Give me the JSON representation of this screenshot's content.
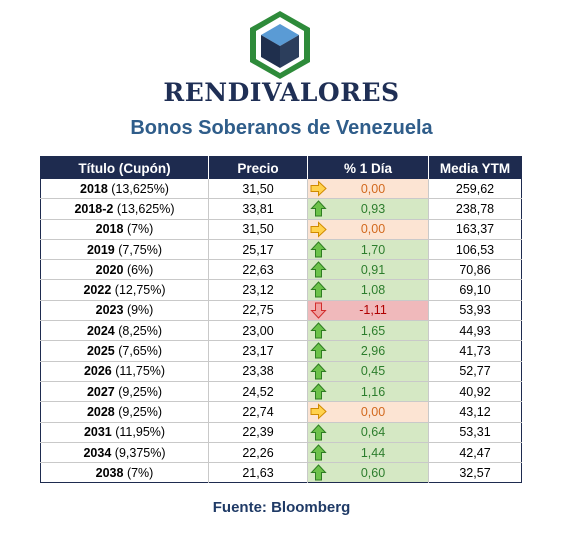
{
  "header": {
    "brand": "RENDIVALORES",
    "subtitle": "Bonos Soberanos de Venezuela"
  },
  "table": {
    "columns": [
      "Título (Cupón)",
      "Precio",
      "% 1 Día",
      "Media YTM"
    ],
    "rows": [
      {
        "year": "2018",
        "coupon": "(13,625%)",
        "price": "31,50",
        "change": "0,00",
        "trend": "flat",
        "ytm": "259,62"
      },
      {
        "year": "2018-2",
        "coupon": "(13,625%)",
        "price": "33,81",
        "change": "0,93",
        "trend": "up",
        "ytm": "238,78"
      },
      {
        "year": "2018",
        "coupon": "(7%)",
        "price": "31,50",
        "change": "0,00",
        "trend": "flat",
        "ytm": "163,37"
      },
      {
        "year": "2019",
        "coupon": "(7,75%)",
        "price": "25,17",
        "change": "1,70",
        "trend": "up",
        "ytm": "106,53"
      },
      {
        "year": "2020",
        "coupon": "(6%)",
        "price": "22,63",
        "change": "0,91",
        "trend": "up",
        "ytm": "70,86"
      },
      {
        "year": "2022",
        "coupon": "(12,75%)",
        "price": "23,12",
        "change": "1,08",
        "trend": "up",
        "ytm": "69,10"
      },
      {
        "year": "2023",
        "coupon": "(9%)",
        "price": "22,75",
        "change": "-1,11",
        "trend": "down",
        "ytm": "53,93"
      },
      {
        "year": "2024",
        "coupon": "(8,25%)",
        "price": "23,00",
        "change": "1,65",
        "trend": "up",
        "ytm": "44,93"
      },
      {
        "year": "2025",
        "coupon": "(7,65%)",
        "price": "23,17",
        "change": "2,96",
        "trend": "up",
        "ytm": "41,73"
      },
      {
        "year": "2026",
        "coupon": "(11,75%)",
        "price": "23,38",
        "change": "0,45",
        "trend": "up",
        "ytm": "52,77"
      },
      {
        "year": "2027",
        "coupon": "(9,25%)",
        "price": "24,52",
        "change": "1,16",
        "trend": "up",
        "ytm": "40,92"
      },
      {
        "year": "2028",
        "coupon": "(9,25%)",
        "price": "22,74",
        "change": "0,00",
        "trend": "flat",
        "ytm": "43,12"
      },
      {
        "year": "2031",
        "coupon": "(11,95%)",
        "price": "22,39",
        "change": "0,64",
        "trend": "up",
        "ytm": "53,31"
      },
      {
        "year": "2034",
        "coupon": "(9,375%)",
        "price": "22,26",
        "change": "1,44",
        "trend": "up",
        "ytm": "42,47"
      },
      {
        "year": "2038",
        "coupon": "(7%)",
        "price": "21,63",
        "change": "0,60",
        "trend": "up",
        "ytm": "32,57"
      }
    ]
  },
  "footer": {
    "source": "Fuente: Bloomberg"
  },
  "icons": {
    "logo": "rendivalores-cube-logo",
    "up": "green-up-arrow-icon",
    "down": "red-down-arrow-icon",
    "flat": "yellow-right-arrow-icon"
  },
  "colors": {
    "header_bg": "#1e2b4f",
    "brand": "#1f2f55",
    "subtitle": "#2f5d8a",
    "up_bg": "#d5e8c4",
    "flat_bg": "#fce4d3",
    "down_bg": "#f0b9bb"
  }
}
